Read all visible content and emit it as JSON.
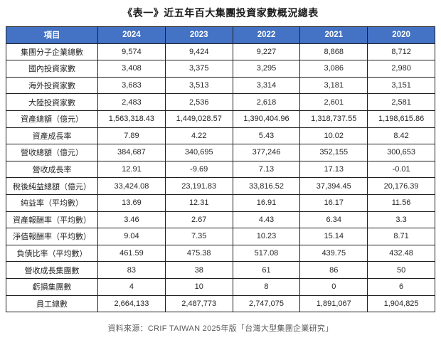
{
  "title": "《表一》近五年百大集團投資家數概況總表",
  "source": "資料來源：CRIF TAIWAN 2025年版「台灣大型集團企業研究」",
  "colors": {
    "header_bg": "#4472C4",
    "header_text": "#FFFFFF",
    "border": "#1F1F1F"
  },
  "table": {
    "header": [
      "項目",
      "2024",
      "2023",
      "2022",
      "2021",
      "2020"
    ],
    "rows": [
      {
        "label": "集團分子企業總數",
        "values": [
          "9,574",
          "9,424",
          "9,227",
          "8,868",
          "8,712"
        ]
      },
      {
        "label": "國內投資家數",
        "values": [
          "3,408",
          "3,375",
          "3,295",
          "3,086",
          "2,980"
        ]
      },
      {
        "label": "海外投資家數",
        "values": [
          "3,683",
          "3,513",
          "3,314",
          "3,181",
          "3,151"
        ]
      },
      {
        "label": "大陸投資家數",
        "values": [
          "2,483",
          "2,536",
          "2,618",
          "2,601",
          "2,581"
        ]
      },
      {
        "label": "資產總額（億元）",
        "values": [
          "1,563,318.43",
          "1,449,028.57",
          "1,390,404.96",
          "1,318,737.55",
          "1,198,615.86"
        ]
      },
      {
        "label": "資產成長率",
        "values": [
          "7.89",
          "4.22",
          "5.43",
          "10.02",
          "8.42"
        ]
      },
      {
        "label": "營收總額（億元）",
        "values": [
          "384,687",
          "340,695",
          "377,246",
          "352,155",
          "300,653"
        ]
      },
      {
        "label": "營收成長率",
        "values": [
          "12.91",
          "-9.69",
          "7.13",
          "17.13",
          "-0.01"
        ]
      },
      {
        "label": "稅後純益總額（億元）",
        "values": [
          "33,424.08",
          "23,191.83",
          "33,816.52",
          "37,394.45",
          "20,176.39"
        ]
      },
      {
        "label": "純益率（平均數）",
        "values": [
          "13.69",
          "12.31",
          "16.91",
          "16.17",
          "11.56"
        ]
      },
      {
        "label": "資產報酬率（平均數）",
        "values": [
          "3.46",
          "2.67",
          "4.43",
          "6.34",
          "3.3"
        ]
      },
      {
        "label": "淨值報酬率（平均數）",
        "values": [
          "9.04",
          "7.35",
          "10.23",
          "15.14",
          "8.71"
        ]
      },
      {
        "label": "負債比率（平均數）",
        "values": [
          "461.59",
          "475.38",
          "517.08",
          "439.75",
          "432.48"
        ]
      },
      {
        "label": "營收成長集團數",
        "values": [
          "83",
          "38",
          "61",
          "86",
          "50"
        ]
      },
      {
        "label": "虧損集團數",
        "values": [
          "4",
          "10",
          "8",
          "0",
          "6"
        ]
      },
      {
        "label": "員工總數",
        "values": [
          "2,664,133",
          "2,487,773",
          "2,747,075",
          "1,891,067",
          "1,904,825"
        ]
      }
    ]
  }
}
